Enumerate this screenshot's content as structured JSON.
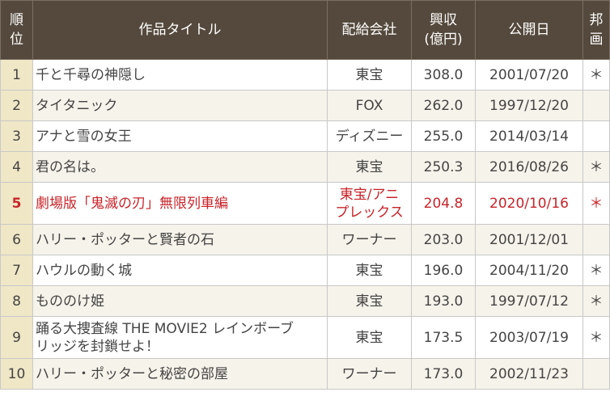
{
  "headers": {
    "rank": [
      "順",
      "位"
    ],
    "title": "作品タイトル",
    "distributor": "配給会社",
    "revenue": [
      "興収",
      "(億円)"
    ],
    "release": "公開日",
    "domestic": [
      "邦",
      "画"
    ]
  },
  "rows": [
    {
      "rank": "1",
      "title": [
        "千と千尋の神隠し"
      ],
      "distributor": [
        "東宝"
      ],
      "revenue": "308.0",
      "date": "2001/07/20",
      "domestic": "＊"
    },
    {
      "rank": "2",
      "title": [
        "タイタニック"
      ],
      "distributor": [
        "FOX"
      ],
      "revenue": "262.0",
      "date": "1997/12/20",
      "domestic": ""
    },
    {
      "rank": "3",
      "title": [
        "アナと雪の女王"
      ],
      "distributor": [
        "ディズニー"
      ],
      "revenue": "255.0",
      "date": "2014/03/14",
      "domestic": ""
    },
    {
      "rank": "4",
      "title": [
        "君の名は。"
      ],
      "distributor": [
        "東宝"
      ],
      "revenue": "250.3",
      "date": "2016/08/26",
      "domestic": "＊"
    },
    {
      "rank": "5",
      "title": [
        "劇場版「鬼滅の刃」無限列車編"
      ],
      "distributor": [
        "東宝/アニ",
        "プレックス"
      ],
      "revenue": "204.8",
      "date": "2020/10/16",
      "domestic": "＊",
      "highlight": true
    },
    {
      "rank": "6",
      "title": [
        "ハリー・ポッターと賢者の石"
      ],
      "distributor": [
        "ワーナー"
      ],
      "revenue": "203.0",
      "date": "2001/12/01",
      "domestic": ""
    },
    {
      "rank": "7",
      "title": [
        "ハウルの動く城"
      ],
      "distributor": [
        "東宝"
      ],
      "revenue": "196.0",
      "date": "2004/11/20",
      "domestic": "＊"
    },
    {
      "rank": "8",
      "title": [
        "もののけ姫"
      ],
      "distributor": [
        "東宝"
      ],
      "revenue": "193.0",
      "date": "1997/07/12",
      "domestic": "＊"
    },
    {
      "rank": "9",
      "title": [
        "踊る大捜査線 THE MOVIE2 レインボーブ",
        "リッジを封鎖せよ！"
      ],
      "distributor": [
        "東宝"
      ],
      "revenue": "173.5",
      "date": "2003/07/19",
      "domestic": "＊"
    },
    {
      "rank": "10",
      "title": [
        "ハリー・ポッターと秘密の部屋"
      ],
      "distributor": [
        "ワーナー"
      ],
      "revenue": "173.0",
      "date": "2002/11/23",
      "domestic": ""
    }
  ],
  "colors": {
    "header_bg": "#54493c",
    "rank_bg": "#efe7c6",
    "stripe_bg": "#f6f3ea",
    "highlight_text": "#c8242a"
  }
}
